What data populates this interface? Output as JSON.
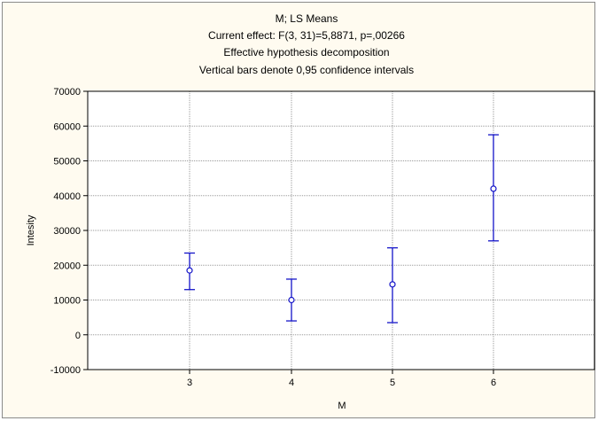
{
  "chart_data": {
    "type": "scatter",
    "title_lines": [
      "M; LS Means",
      "Current effect: F(3, 31)=5,8871, p=,00266",
      "Effective hypothesis decomposition",
      "Vertical bars denote 0,95 confidence intervals"
    ],
    "xlabel": "M",
    "ylabel": "Intesity",
    "categories": [
      "3",
      "4",
      "5",
      "6"
    ],
    "ylim": [
      -10000,
      70000
    ],
    "yticks": [
      -10000,
      0,
      10000,
      20000,
      30000,
      40000,
      50000,
      60000,
      70000
    ],
    "ytick_labels": [
      "-10000",
      "0",
      "10000",
      "20000",
      "30000",
      "40000",
      "50000",
      "60000",
      "70000"
    ],
    "grid": true,
    "points": [
      {
        "x": "3",
        "mean": 18500,
        "lower": 13000,
        "upper": 23500
      },
      {
        "x": "4",
        "mean": 10000,
        "lower": 4000,
        "upper": 16000
      },
      {
        "x": "5",
        "mean": 14500,
        "lower": 3500,
        "upper": 25000
      },
      {
        "x": "6",
        "mean": 42000,
        "lower": 27000,
        "upper": 57500
      }
    ],
    "colors": {
      "series": "#1414c8",
      "grid": "#9a9a9a",
      "plot_bg": "#ffffff",
      "page_bg": "#fffbf0"
    }
  }
}
